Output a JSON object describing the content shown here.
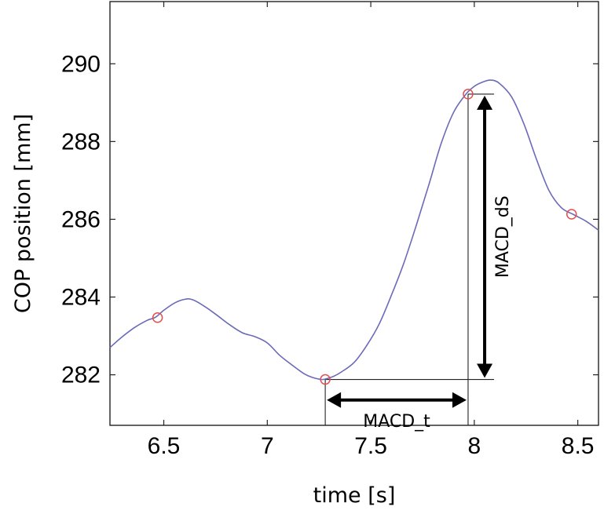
{
  "chart_data": {
    "type": "line",
    "xlabel": "time [s]",
    "ylabel": "COP position [mm]",
    "xlim": [
      6.24,
      8.6
    ],
    "ylim": [
      280.7,
      291.6
    ],
    "xticks": [
      6.5,
      7,
      7.5,
      8,
      8.5
    ],
    "xtick_labels": [
      "6.5",
      "7",
      "7.5",
      "8",
      "8.5"
    ],
    "yticks": [
      282,
      284,
      286,
      288,
      290
    ],
    "ytick_labels": [
      "282",
      "284",
      "286",
      "288",
      "290"
    ],
    "grid": false,
    "line_color": "#6a6ab8",
    "marker_color": "#e05050",
    "series": [
      {
        "x": [
          6.24,
          6.3,
          6.36,
          6.42,
          6.46,
          6.5,
          6.55,
          6.6,
          6.64,
          6.7,
          6.76,
          6.82,
          6.88,
          6.94,
          7.0,
          7.06,
          7.12,
          7.18,
          7.22,
          7.26,
          7.28,
          7.32,
          7.36,
          7.42,
          7.48,
          7.54,
          7.6,
          7.66,
          7.72,
          7.78,
          7.84,
          7.9,
          7.96,
          8.0,
          8.04,
          8.08,
          8.12,
          8.18,
          8.24,
          8.3,
          8.36,
          8.42,
          8.48,
          8.54,
          8.6
        ],
        "y": [
          282.7,
          282.98,
          283.22,
          283.4,
          283.48,
          283.66,
          283.84,
          283.94,
          283.93,
          283.75,
          283.52,
          283.28,
          283.08,
          282.98,
          282.82,
          282.5,
          282.25,
          282.02,
          281.93,
          281.88,
          281.89,
          281.96,
          282.08,
          282.32,
          282.75,
          283.3,
          284.05,
          284.88,
          285.85,
          286.88,
          287.95,
          288.75,
          289.22,
          289.42,
          289.53,
          289.58,
          289.5,
          289.15,
          288.45,
          287.55,
          286.75,
          286.3,
          286.12,
          285.95,
          285.72
        ]
      }
    ],
    "markers": [
      {
        "x": 6.47,
        "y": 283.47
      },
      {
        "x": 7.28,
        "y": 281.88
      },
      {
        "x": 7.97,
        "y": 289.22
      },
      {
        "x": 8.47,
        "y": 286.13
      }
    ],
    "annotations": {
      "time_arrow": {
        "label": "MACD_t",
        "x_start": 7.28,
        "x_end": 7.97,
        "y": 281.35
      },
      "ds_arrow": {
        "label": "MACD_dS",
        "x": 8.05,
        "y_start": 281.88,
        "y_end": 289.22
      }
    }
  }
}
